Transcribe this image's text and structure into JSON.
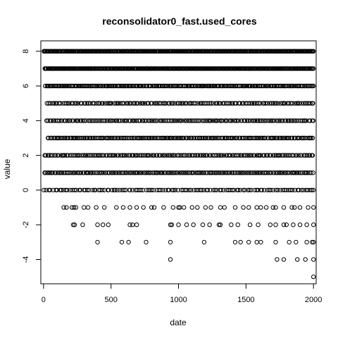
{
  "chart_data": {
    "type": "scatter",
    "title": "reconsolidator0_fast.used_cores",
    "xlabel": "date",
    "ylabel": "value",
    "xlim": [
      -20,
      2020
    ],
    "ylim": [
      -5.4,
      8.6
    ],
    "xticks": [
      0,
      500,
      1000,
      1500,
      2000
    ],
    "yticks": [
      -4,
      -2,
      0,
      2,
      4,
      6,
      8
    ],
    "marker": "open-circle",
    "grid": false,
    "legend": "none",
    "point_color": "#000000",
    "row_sampling": [
      {
        "y": 8,
        "start": 0,
        "end": 2000,
        "step": 6
      },
      {
        "y": 7,
        "start": 5,
        "end": 2000,
        "step": 6
      },
      {
        "y": 6,
        "start": 10,
        "end": 2000,
        "step": 9
      },
      {
        "y": 5,
        "start": 20,
        "end": 2000,
        "step": 13
      },
      {
        "y": 4,
        "start": 15,
        "end": 2000,
        "step": 12
      },
      {
        "y": 3,
        "start": 25,
        "end": 2000,
        "step": 11
      },
      {
        "y": 2,
        "start": 0,
        "end": 2000,
        "step": 12
      },
      {
        "y": 1,
        "start": 0,
        "end": 2000,
        "step": 11
      },
      {
        "y": 0,
        "start": 0,
        "end": 2000,
        "step": 16
      }
    ],
    "sparse_points": [
      {
        "x": 150,
        "y": -1
      },
      {
        "x": 170,
        "y": -1
      },
      {
        "x": 210,
        "y": -1
      },
      {
        "x": 225,
        "y": -1
      },
      {
        "x": 240,
        "y": -1
      },
      {
        "x": 300,
        "y": -1
      },
      {
        "x": 330,
        "y": -1
      },
      {
        "x": 390,
        "y": -1
      },
      {
        "x": 450,
        "y": -1
      },
      {
        "x": 540,
        "y": -1
      },
      {
        "x": 590,
        "y": -1
      },
      {
        "x": 640,
        "y": -1
      },
      {
        "x": 690,
        "y": -1
      },
      {
        "x": 740,
        "y": -1
      },
      {
        "x": 800,
        "y": -1
      },
      {
        "x": 820,
        "y": -1
      },
      {
        "x": 890,
        "y": -1
      },
      {
        "x": 960,
        "y": -1
      },
      {
        "x": 1000,
        "y": -1
      },
      {
        "x": 1010,
        "y": -1
      },
      {
        "x": 1040,
        "y": -1
      },
      {
        "x": 1100,
        "y": -1
      },
      {
        "x": 1140,
        "y": -1
      },
      {
        "x": 1200,
        "y": -1
      },
      {
        "x": 1240,
        "y": -1
      },
      {
        "x": 1310,
        "y": -1
      },
      {
        "x": 1340,
        "y": -1
      },
      {
        "x": 1420,
        "y": -1
      },
      {
        "x": 1480,
        "y": -1
      },
      {
        "x": 1520,
        "y": -1
      },
      {
        "x": 1580,
        "y": -1
      },
      {
        "x": 1610,
        "y": -1
      },
      {
        "x": 1650,
        "y": -1
      },
      {
        "x": 1700,
        "y": -1
      },
      {
        "x": 1720,
        "y": -1
      },
      {
        "x": 1780,
        "y": -1
      },
      {
        "x": 1840,
        "y": -1
      },
      {
        "x": 1860,
        "y": -1
      },
      {
        "x": 1900,
        "y": -1
      },
      {
        "x": 1960,
        "y": -1
      },
      {
        "x": 2000,
        "y": -1
      },
      {
        "x": 220,
        "y": -2
      },
      {
        "x": 230,
        "y": -2
      },
      {
        "x": 290,
        "y": -2
      },
      {
        "x": 400,
        "y": -2
      },
      {
        "x": 440,
        "y": -2
      },
      {
        "x": 480,
        "y": -2
      },
      {
        "x": 640,
        "y": -2
      },
      {
        "x": 660,
        "y": -2
      },
      {
        "x": 690,
        "y": -2
      },
      {
        "x": 940,
        "y": -2
      },
      {
        "x": 950,
        "y": -2
      },
      {
        "x": 1000,
        "y": -2
      },
      {
        "x": 1060,
        "y": -2
      },
      {
        "x": 1110,
        "y": -2
      },
      {
        "x": 1180,
        "y": -2
      },
      {
        "x": 1230,
        "y": -2
      },
      {
        "x": 1300,
        "y": -2
      },
      {
        "x": 1310,
        "y": -2
      },
      {
        "x": 1390,
        "y": -2
      },
      {
        "x": 1440,
        "y": -2
      },
      {
        "x": 1530,
        "y": -2
      },
      {
        "x": 1590,
        "y": -2
      },
      {
        "x": 1680,
        "y": -2
      },
      {
        "x": 1720,
        "y": -2
      },
      {
        "x": 1780,
        "y": -2
      },
      {
        "x": 1800,
        "y": -2
      },
      {
        "x": 1850,
        "y": -2
      },
      {
        "x": 1900,
        "y": -2
      },
      {
        "x": 1950,
        "y": -2
      },
      {
        "x": 2000,
        "y": -2
      },
      {
        "x": 400,
        "y": -3
      },
      {
        "x": 580,
        "y": -3
      },
      {
        "x": 630,
        "y": -3
      },
      {
        "x": 760,
        "y": -3
      },
      {
        "x": 940,
        "y": -3
      },
      {
        "x": 1190,
        "y": -3
      },
      {
        "x": 1420,
        "y": -3
      },
      {
        "x": 1460,
        "y": -3
      },
      {
        "x": 1520,
        "y": -3
      },
      {
        "x": 1580,
        "y": -3
      },
      {
        "x": 1610,
        "y": -3
      },
      {
        "x": 1720,
        "y": -3
      },
      {
        "x": 1820,
        "y": -3
      },
      {
        "x": 1870,
        "y": -3
      },
      {
        "x": 1950,
        "y": -3
      },
      {
        "x": 1990,
        "y": -3
      },
      {
        "x": 2000,
        "y": -3
      },
      {
        "x": 940,
        "y": -4
      },
      {
        "x": 1730,
        "y": -4
      },
      {
        "x": 1780,
        "y": -4
      },
      {
        "x": 1880,
        "y": -4
      },
      {
        "x": 1940,
        "y": -4
      },
      {
        "x": 2000,
        "y": -4
      },
      {
        "x": 2000,
        "y": -5
      }
    ]
  }
}
